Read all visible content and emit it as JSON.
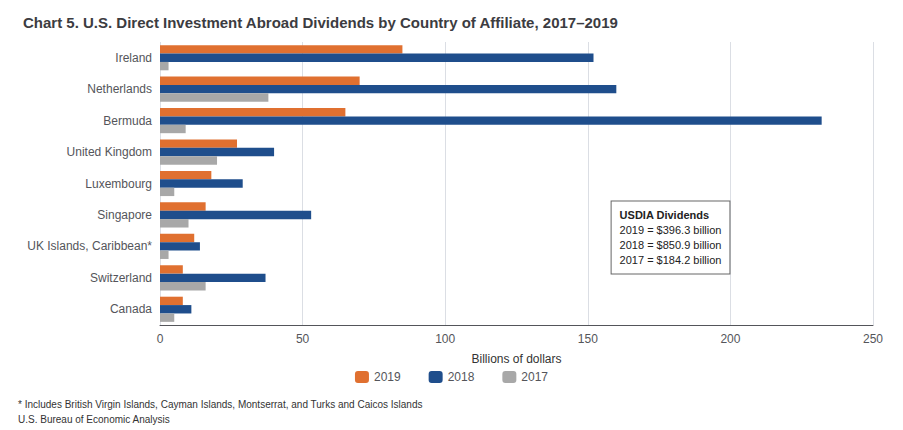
{
  "chart_data": {
    "type": "bar",
    "orientation": "horizontal",
    "title": "Chart 5. U.S. Direct Investment Abroad Dividends by Country of Affiliate, 2017–2019",
    "xlabel": "Billions of dollars",
    "categories": [
      "Ireland",
      "Netherlands",
      "Bermuda",
      "United Kingdom",
      "Luxembourg",
      "Singapore",
      "UK Islands, Caribbean*",
      "Switzerland",
      "Canada"
    ],
    "series": [
      {
        "name": "2019",
        "color": "#E07030",
        "values": [
          85,
          70,
          65,
          27,
          18,
          16,
          12,
          8,
          8
        ]
      },
      {
        "name": "2018",
        "color": "#1F4E8C",
        "values": [
          152,
          160,
          232,
          40,
          29,
          53,
          14,
          37,
          11
        ]
      },
      {
        "name": "2017",
        "color": "#A8A8A8",
        "values": [
          3,
          38,
          9,
          20,
          5,
          10,
          3,
          16,
          5
        ]
      }
    ],
    "xlim": [
      0,
      250
    ],
    "xticks": [
      0,
      50,
      100,
      150,
      200,
      250
    ],
    "grid": true,
    "legend": "bottom",
    "annotations": [
      {
        "title": "USDIA Dividends",
        "lines": [
          "2019 = $396.3 billion",
          "2018 = $850.9 billion",
          "2017 = $184.2 billion"
        ]
      }
    ],
    "footnotes": [
      "* Includes British Virgin Islands, Cayman Islands, Montserrat, and Turks and Caicos Islands",
      "U.S. Bureau of Economic Analysis"
    ]
  }
}
